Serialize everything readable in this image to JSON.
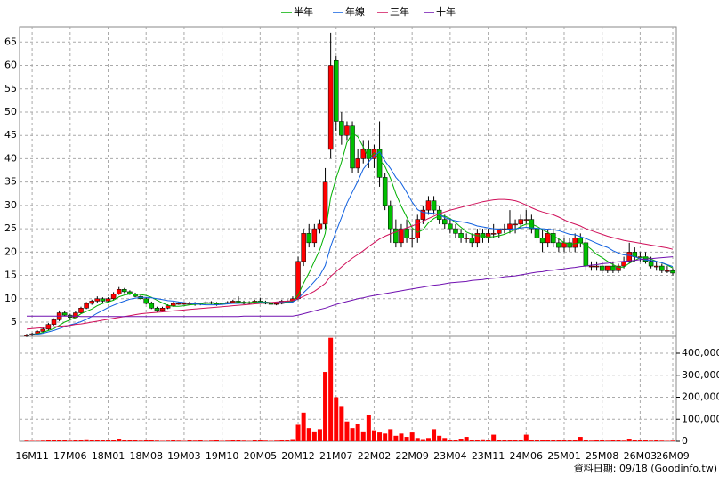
{
  "chart_data": {
    "type": "candlestick",
    "legend": [
      "半年",
      "年線",
      "三年",
      "十年"
    ],
    "source": "資料日期: 09/18 (Goodinfo.tw)",
    "up_color": "#ff0000",
    "down_color": "#00c000",
    "volume_color": "#ff0000",
    "grid": true,
    "categories": [
      null,
      "16M11",
      null,
      null,
      null,
      null,
      null,
      null,
      "17M06",
      null,
      null,
      null,
      null,
      null,
      null,
      "18M01",
      null,
      null,
      null,
      null,
      null,
      null,
      "18M08",
      null,
      null,
      null,
      null,
      null,
      null,
      "19M03",
      null,
      null,
      null,
      null,
      null,
      null,
      "19M10",
      null,
      null,
      null,
      null,
      null,
      null,
      "20M05",
      null,
      null,
      null,
      null,
      null,
      null,
      "20M12",
      null,
      null,
      null,
      null,
      null,
      null,
      "21M07",
      null,
      null,
      null,
      null,
      null,
      null,
      "22M02",
      null,
      null,
      null,
      null,
      null,
      null,
      "22M09",
      null,
      null,
      null,
      null,
      null,
      null,
      "23M04",
      null,
      null,
      null,
      null,
      null,
      null,
      "23M11",
      null,
      null,
      null,
      null,
      null,
      null,
      "24M06",
      null,
      null,
      null,
      null,
      null,
      null,
      "25M01",
      null,
      null,
      null,
      null,
      null,
      null,
      "25M08",
      null,
      null,
      null,
      null,
      null,
      null,
      "26M03",
      null,
      null,
      null,
      null,
      null,
      "26M09"
    ],
    "open": [
      2,
      2.2,
      2.5,
      3,
      3.5,
      4.5,
      5.5,
      7,
      6.5,
      6,
      7,
      8,
      9,
      9.5,
      10,
      9.5,
      10,
      11,
      12,
      11.5,
      11,
      10.5,
      10,
      9,
      8,
      7.5,
      8,
      8.5,
      9,
      9,
      9,
      9,
      8.8,
      9,
      9.2,
      9,
      8.8,
      9,
      9.2,
      9.5,
      9.3,
      9,
      9.2,
      9.5,
      9.3,
      9,
      8.8,
      9,
      9.5,
      9.5,
      10,
      18,
      24,
      22,
      25,
      26,
      42,
      61,
      48,
      45,
      47,
      38,
      40,
      42,
      40,
      42,
      36,
      30,
      25,
      22,
      25,
      23,
      23,
      27,
      29,
      31,
      29,
      27,
      26,
      25,
      24,
      23,
      23,
      22,
      24,
      23,
      24,
      24,
      25,
      25,
      26,
      26,
      27,
      27,
      25,
      23,
      22,
      24,
      22,
      21,
      22,
      21,
      23,
      22,
      17,
      17,
      17,
      16,
      17,
      16,
      17,
      18,
      20,
      19,
      19,
      18,
      17,
      17,
      16,
      16
    ],
    "high": [
      2.5,
      2.7,
      3.2,
      3.8,
      4.8,
      5.8,
      7.5,
      7.3,
      6.8,
      7.3,
      8.3,
      9.3,
      9.8,
      10.5,
      10.3,
      10.3,
      11.4,
      12.5,
      12.3,
      11.8,
      11.3,
      10.8,
      10.3,
      9.4,
      8.3,
      8.3,
      8.8,
      9.3,
      9.4,
      9.3,
      9.4,
      9.3,
      9.2,
      9.5,
      9.5,
      9.3,
      9.2,
      9.5,
      9.8,
      10.5,
      9.6,
      9.5,
      9.8,
      10.2,
      9.6,
      9.3,
      9.3,
      9.8,
      9.9,
      10.5,
      19,
      25,
      26,
      26,
      27,
      38,
      67,
      62,
      50,
      48,
      48,
      42,
      44,
      44,
      43,
      48,
      37,
      31,
      27,
      26,
      27,
      25,
      28,
      30,
      32,
      32,
      30,
      28,
      27,
      26,
      25,
      24,
      24,
      25,
      25,
      25,
      26,
      25,
      26,
      29,
      27,
      28,
      29,
      28,
      27,
      25,
      25,
      25,
      23,
      23,
      23,
      24,
      24,
      23,
      18,
      18,
      18,
      17,
      18,
      17.5,
      19,
      22,
      21,
      20,
      20,
      19,
      18,
      17.5,
      17,
      16.5
    ],
    "low": [
      1.8,
      2,
      2.3,
      2.8,
      3.3,
      4.3,
      5.2,
      6.3,
      5.7,
      5.8,
      6.8,
      7.8,
      8.7,
      9.2,
      9.2,
      9.3,
      9.8,
      10.8,
      11.2,
      10.8,
      10.3,
      9.8,
      8.8,
      7.8,
      7.2,
      7.3,
      7.8,
      8.3,
      8.7,
      8.7,
      8.7,
      8.5,
      8.6,
      8.8,
      8.8,
      8.5,
      8.6,
      8.8,
      9,
      9,
      8.8,
      8.8,
      9,
      9.1,
      8.8,
      8.5,
      8.6,
      8.8,
      9.2,
      9.2,
      9.7,
      17,
      21,
      21,
      24,
      25,
      40,
      46,
      43,
      44,
      37,
      37,
      39,
      38,
      38,
      34,
      29,
      22,
      21,
      21,
      22,
      21,
      22,
      26,
      28,
      28,
      26,
      25,
      24,
      23,
      22,
      22,
      21,
      21,
      22,
      22,
      23,
      23,
      24,
      24,
      24,
      25,
      26,
      24,
      22,
      20,
      21,
      21,
      20,
      20,
      20,
      20,
      21,
      16,
      16,
      16,
      15.5,
      15.5,
      15.5,
      15.5,
      16.5,
      17.5,
      18,
      18,
      17.5,
      16.5,
      16,
      15.5,
      15.5,
      15
    ],
    "close": [
      2.2,
      2.5,
      3,
      3.5,
      4.5,
      5.5,
      7,
      6.5,
      6,
      7,
      8,
      9,
      9.5,
      10,
      9.5,
      10,
      11,
      12,
      11.5,
      11,
      10.5,
      10,
      9,
      8,
      7.5,
      8,
      8.5,
      9,
      9,
      9,
      9,
      8.8,
      9,
      9.2,
      9,
      8.8,
      9,
      9.2,
      9.5,
      9.3,
      9,
      9.2,
      9.5,
      9.3,
      9,
      8.8,
      9,
      9.5,
      9.5,
      10,
      18,
      24,
      22,
      25,
      26,
      35,
      60,
      48,
      45,
      47,
      38,
      40,
      42,
      40,
      42,
      36,
      30,
      25,
      22,
      25,
      23,
      23,
      27,
      29,
      31,
      29,
      27,
      26,
      25,
      24,
      23,
      23,
      22,
      24,
      23,
      24,
      24,
      25,
      25,
      26,
      26,
      27,
      27,
      25,
      23,
      22,
      24,
      22,
      21,
      22,
      21,
      23,
      22,
      17,
      17,
      17,
      16,
      17,
      16,
      17,
      18,
      20,
      19,
      19,
      18,
      17,
      17,
      16,
      16,
      15.5
    ],
    "volume": [
      3000,
      2000,
      2000,
      3000,
      5000,
      4000,
      8000,
      6000,
      3000,
      4000,
      5000,
      9000,
      7000,
      8000,
      5000,
      4000,
      6000,
      12000,
      8000,
      5000,
      4000,
      3000,
      5000,
      4000,
      3000,
      2000,
      3000,
      4000,
      3000,
      2000,
      6000,
      3000,
      4000,
      2000,
      3000,
      5000,
      2000,
      3000,
      4000,
      5000,
      3000,
      2000,
      4000,
      5000,
      3000,
      2000,
      3000,
      4000,
      5000,
      10000,
      75000,
      130000,
      60000,
      45000,
      55000,
      315000,
      470000,
      200000,
      160000,
      90000,
      60000,
      80000,
      45000,
      120000,
      50000,
      40000,
      35000,
      55000,
      25000,
      35000,
      20000,
      40000,
      15000,
      10000,
      15000,
      55000,
      25000,
      15000,
      8000,
      6000,
      12000,
      20000,
      8000,
      5000,
      9000,
      6000,
      30000,
      7000,
      5000,
      8000,
      6000,
      7000,
      30000,
      6000,
      5000,
      4000,
      8000,
      6000,
      4000,
      5000,
      4000,
      5000,
      20000,
      6000,
      3000,
      4000,
      5000,
      3000,
      4000,
      5000,
      3000,
      12000,
      6000,
      5000,
      4000,
      3000,
      4000,
      3000,
      2000,
      3000
    ],
    "series": [
      {
        "name": "半年",
        "color": "#00b000",
        "values": [
          2.2,
          2.3,
          2.5,
          2.8,
          3.2,
          3.6,
          4.3,
          5,
          5.5,
          6,
          6.8,
          7.3,
          7.8,
          8.5,
          9,
          9.3,
          9.7,
          10.4,
          10.8,
          11,
          11,
          10.9,
          10.7,
          10.3,
          9.7,
          9.1,
          8.6,
          8.4,
          8.4,
          8.5,
          8.7,
          8.8,
          8.9,
          9,
          9,
          9,
          9,
          9,
          9.1,
          9.2,
          9.2,
          9.2,
          9.3,
          9.3,
          9.3,
          9.2,
          9.1,
          9.2,
          9.3,
          9.4,
          10.8,
          13.3,
          15.5,
          18,
          20.5,
          24,
          31.7,
          35.8,
          39.3,
          43.5,
          45.5,
          44.7,
          42.5,
          40,
          41.3,
          39.8,
          38.3,
          35.8,
          32.5,
          29.8,
          27.5,
          25.2,
          24.2,
          24.8,
          26.3,
          27.2,
          27.8,
          27.7,
          27.2,
          26.3,
          25.3,
          24.3,
          23.8,
          23.5,
          23.5,
          23.2,
          23.3,
          23.5,
          23.8,
          24.3,
          24.8,
          25.5,
          26,
          26,
          25.5,
          24.8,
          24.2,
          23.5,
          22.8,
          22,
          21.7,
          21.8,
          22,
          21.5,
          20.6,
          19.5,
          18.8,
          18,
          17.3,
          16.7,
          16.8,
          17.6,
          18.2,
          18.8,
          19,
          18.5,
          18,
          17.7,
          17.2,
          16.6
        ]
      },
      {
        "name": "年線",
        "color": "#1060e0",
        "values": [
          2.2,
          2.3,
          2.4,
          2.6,
          2.9,
          3.2,
          3.6,
          4,
          4.4,
          4.7,
          5.1,
          5.6,
          6.2,
          6.9,
          7.5,
          8.1,
          8.6,
          9.1,
          9.5,
          9.9,
          10.1,
          10.3,
          10.3,
          10.2,
          10,
          9.8,
          9.6,
          9.5,
          9.3,
          9.2,
          9,
          8.9,
          8.8,
          8.7,
          8.7,
          8.7,
          8.8,
          8.9,
          9,
          9,
          9.1,
          9.1,
          9.1,
          9.2,
          9.2,
          9.2,
          9.2,
          9.2,
          9.2,
          9.3,
          10,
          11.3,
          12.4,
          13.7,
          15,
          17.1,
          21.2,
          24.4,
          27.4,
          30.5,
          32.9,
          35.2,
          37.8,
          39.3,
          40.6,
          41.5,
          39.5,
          37.9,
          36,
          34.7,
          32.8,
          30.7,
          29.1,
          28.5,
          28.4,
          28.3,
          28,
          27.4,
          27,
          26.7,
          26.5,
          26.3,
          26,
          25.6,
          25.4,
          25.2,
          25,
          24.9,
          24.8,
          24.9,
          25,
          25.2,
          25.3,
          25.2,
          25.1,
          25,
          24.9,
          24.8,
          24.6,
          24.2,
          23.8,
          23.7,
          23.3,
          22.9,
          22.4,
          21.9,
          21.4,
          21,
          20.3,
          19.8,
          19.4,
          19.3,
          19,
          18.6,
          18.3,
          18.2,
          18,
          17.7,
          17.3,
          16.9
        ]
      },
      {
        "name": "三年",
        "color": "#d0105a",
        "values": [
          3.5,
          3.6,
          3.7,
          3.8,
          3.9,
          4,
          4.1,
          4.2,
          4.3,
          4.5,
          4.6,
          4.8,
          5,
          5.2,
          5.4,
          5.6,
          5.8,
          6,
          6.2,
          6.4,
          6.6,
          6.8,
          6.9,
          7,
          7.1,
          7.2,
          7.3,
          7.4,
          7.5,
          7.6,
          7.7,
          7.8,
          7.9,
          8,
          8.1,
          8.2,
          8.3,
          8.4,
          8.5,
          8.6,
          8.7,
          8.8,
          8.9,
          9,
          9.1,
          9.2,
          9.3,
          9.4,
          9.5,
          9.6,
          10,
          10.5,
          11,
          11.6,
          12.4,
          13.3,
          14.8,
          15.8,
          16.8,
          17.8,
          18.7,
          19.5,
          20.3,
          21.2,
          22,
          22.8,
          23.4,
          23.9,
          24.3,
          24.8,
          25.2,
          25.6,
          26.1,
          26.6,
          27.2,
          27.7,
          28.2,
          28.6,
          29,
          29.3,
          29.6,
          29.9,
          30.2,
          30.5,
          30.8,
          31,
          31.2,
          31.3,
          31.3,
          31.2,
          31,
          30.6,
          30.1,
          29.5,
          29,
          28.6,
          28.3,
          28,
          27.5,
          26.9,
          26.4,
          26,
          25.6,
          25,
          24.6,
          24.2,
          23.8,
          23.4,
          23.1,
          22.8,
          22.5,
          22.3,
          22.1,
          21.9,
          21.7,
          21.5,
          21.3,
          21.1,
          20.9,
          20.6
        ]
      },
      {
        "name": "十年",
        "color": "#7010b0",
        "values": [
          6.3,
          6.3,
          6.3,
          6.3,
          6.3,
          6.3,
          6.3,
          6.3,
          6.3,
          6.3,
          6.2,
          6.2,
          6.2,
          6.2,
          6.2,
          6.2,
          6.2,
          6.2,
          6.2,
          6.2,
          6.2,
          6.2,
          6.2,
          6.2,
          6.2,
          6.2,
          6.2,
          6.2,
          6.2,
          6.2,
          6.2,
          6.2,
          6.2,
          6.2,
          6.2,
          6.2,
          6.2,
          6.2,
          6.2,
          6.2,
          6.3,
          6.3,
          6.3,
          6.3,
          6.3,
          6.3,
          6.3,
          6.3,
          6.3,
          6.3,
          6.5,
          6.8,
          7.1,
          7.4,
          7.7,
          8,
          8.4,
          8.8,
          9.1,
          9.4,
          9.7,
          10,
          10.2,
          10.5,
          10.7,
          10.9,
          11.1,
          11.3,
          11.5,
          11.7,
          11.9,
          12.1,
          12.3,
          12.5,
          12.7,
          12.9,
          13,
          13.2,
          13.4,
          13.5,
          13.6,
          13.7,
          13.9,
          14,
          14.1,
          14.3,
          14.4,
          14.5,
          14.7,
          14.8,
          14.9,
          15.1,
          15.3,
          15.5,
          15.7,
          15.8,
          16,
          16.1,
          16.3,
          16.4,
          16.6,
          16.7,
          16.9,
          17,
          17.2,
          17.3,
          17.5,
          17.6,
          17.8,
          17.9,
          18,
          18.1,
          18.2,
          18.4,
          18.5,
          18.6,
          18.7,
          18.8,
          18.9,
          19
        ]
      }
    ],
    "ylim": [
      1.95,
      68.3
    ],
    "yticks": [
      5,
      10,
      15,
      20,
      25,
      30,
      35,
      40,
      45,
      50,
      55,
      60,
      65
    ],
    "y2lim": [
      0,
      476800
    ],
    "y2ticks": [
      0,
      {
        "value": 100000,
        "label": "100,000"
      },
      {
        "value": 200000,
        "label": "200,000"
      },
      {
        "value": 300000,
        "label": "300,000"
      },
      {
        "value": 400000,
        "label": "400,000"
      }
    ]
  }
}
